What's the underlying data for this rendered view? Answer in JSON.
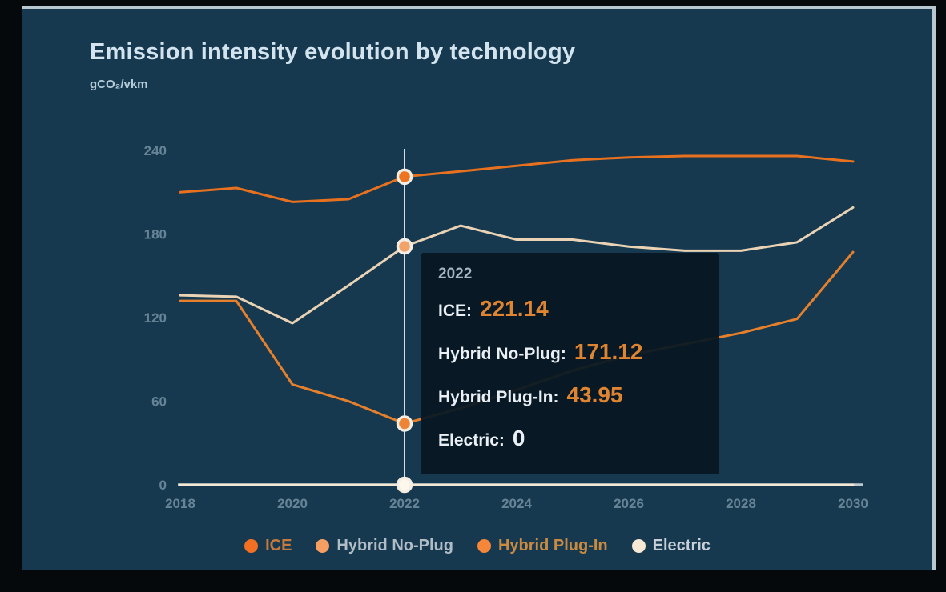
{
  "header": {
    "title": "Emission intensity evolution by technology",
    "unit_label": "gCO₂/vkm"
  },
  "chart_data": {
    "type": "line",
    "title": "Emission intensity evolution by technology",
    "ylabel": "gCO₂/vkm",
    "xlabel": "",
    "grid": false,
    "legend_position": "bottom",
    "xlim": [
      2018,
      2030
    ],
    "ylim": [
      0,
      240
    ],
    "yticks": [
      0,
      60,
      120,
      180,
      240
    ],
    "xticks": [
      2018,
      2020,
      2022,
      2024,
      2026,
      2028,
      2030
    ],
    "x": [
      2018,
      2019,
      2020,
      2021,
      2022,
      2023,
      2024,
      2025,
      2026,
      2027,
      2028,
      2029,
      2030
    ],
    "highlight_x": 2022,
    "series": [
      {
        "name": "ICE",
        "color": "#e8711f",
        "marker_fill": "#ef7420",
        "values": [
          210,
          213,
          203,
          205,
          221.14,
          225,
          229,
          233,
          235,
          236,
          236,
          236,
          232
        ]
      },
      {
        "name": "Hybrid No-Plug",
        "color": "#ead3b5",
        "marker_fill": "#f3a269",
        "values": [
          136,
          135,
          116,
          143,
          171.12,
          186,
          176,
          176,
          171,
          168,
          168,
          174,
          199
        ]
      },
      {
        "name": "Hybrid Plug-In",
        "color": "#e6802c",
        "marker_fill": "#ee8435",
        "values": [
          132,
          132,
          72,
          60,
          43.95,
          55,
          68,
          82,
          93,
          101,
          109,
          119,
          167
        ]
      },
      {
        "name": "Electric",
        "color": "#f3e8d6",
        "marker_fill": "#fdf7ec",
        "values": [
          0,
          0,
          0,
          0,
          0,
          0,
          0,
          0,
          0,
          0,
          0,
          0,
          0
        ]
      }
    ]
  },
  "tooltip": {
    "year": "2022",
    "rows": [
      {
        "label": "ICE:",
        "value": "221.14",
        "value_color": "#df8430"
      },
      {
        "label": "Hybrid No-Plug:",
        "value": "171.12",
        "value_color": "#df8430"
      },
      {
        "label": "Hybrid Plug-In:",
        "value": "43.95",
        "value_color": "#df8430"
      },
      {
        "label": "Electric:",
        "value": "0",
        "value_color": "#e9eff4"
      }
    ]
  },
  "legend": {
    "items": [
      {
        "label": "ICE",
        "dot_color": "#f36f21",
        "text_color": "#c77c3e"
      },
      {
        "label": "Hybrid No-Plug",
        "dot_color": "#f79e63",
        "text_color": "#b0bcc6"
      },
      {
        "label": "Hybrid Plug-In",
        "dot_color": "#f5863a",
        "text_color": "#c98a42"
      },
      {
        "label": "Electric",
        "dot_color": "#f6e8d4",
        "text_color": "#c7d0d8"
      }
    ]
  },
  "colors": {
    "panel_background": "#16394f",
    "page_background": "#05090c",
    "axis_line": "#bcc8cf",
    "highlight_line": "#cfdfe9",
    "marker_ring": "#f3ede3",
    "accent_orange": "#e8711f"
  }
}
